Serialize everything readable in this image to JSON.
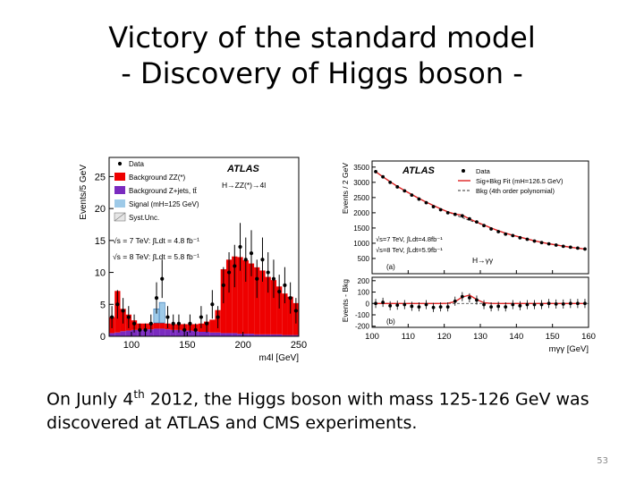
{
  "slide": {
    "title_line1": "Victory of the standard model",
    "title_line2": "- Discovery of Higgs boson -",
    "body_prefix": "On Junly 4",
    "body_sup": "th",
    "body_rest": " 2012, the Higgs boson with mass 125-126 GeV was discovered at ATLAS and CMS experiments.",
    "page_number": "53"
  },
  "colors": {
    "background_zz": "#ee0000",
    "background_zjets": "#7a2bbf",
    "signal": "#9ecae8",
    "data_points": "#000000",
    "fit_line": "#dd2222"
  },
  "chart_data": [
    {
      "type": "bar",
      "experiment": "ATLAS",
      "channel": "H→ZZ(*)→4l",
      "ylabel": "Events/5 GeV",
      "xlabel": "m4l [GeV]",
      "xlim": [
        80,
        250
      ],
      "ylim": [
        0,
        28
      ],
      "yticks": [
        "0",
        "5",
        "10",
        "15",
        "20",
        "25"
      ],
      "xticks": [
        "100",
        "150",
        "200",
        "250"
      ],
      "legend": [
        {
          "label": "Data",
          "style": "marker"
        },
        {
          "label": "Background ZZ(*)",
          "color": "#ee0000"
        },
        {
          "label": "Background Z+jets, tt̄",
          "color": "#7a2bbf"
        },
        {
          "label": "Signal (mH=125 GeV)",
          "color": "#9ecae8"
        },
        {
          "label": "Syst.Unc.",
          "style": "hatched"
        }
      ],
      "annotations": [
        "√s = 7 TeV: ∫Ldt = 4.8 fb⁻¹",
        "√s = 8 TeV: ∫Ldt = 5.8 fb⁻¹"
      ],
      "bin_centers": [
        82.5,
        87.5,
        92.5,
        97.5,
        102.5,
        107.5,
        112.5,
        117.5,
        122.5,
        127.5,
        132.5,
        137.5,
        142.5,
        147.5,
        152.5,
        157.5,
        162.5,
        167.5,
        172.5,
        177.5,
        182.5,
        187.5,
        192.5,
        197.5,
        202.5,
        207.5,
        212.5,
        217.5,
        222.5,
        227.5,
        232.5,
        237.5,
        242.5,
        247.5
      ],
      "series": [
        {
          "name": "Background Z+jets, tt̄",
          "values": [
            0.5,
            0.6,
            0.8,
            0.9,
            1.0,
            1.0,
            1.1,
            1.1,
            1.2,
            1.2,
            1.1,
            1.0,
            1.0,
            0.9,
            0.9,
            0.8,
            0.7,
            0.7,
            0.6,
            0.6,
            0.5,
            0.5,
            0.5,
            0.4,
            0.4,
            0.4,
            0.3,
            0.3,
            0.3,
            0.3,
            0.3,
            0.2,
            0.2,
            0.2
          ]
        },
        {
          "name": "Background ZZ(*)",
          "values": [
            2.5,
            6.5,
            3.5,
            2.5,
            1.5,
            1.0,
            0.9,
            0.9,
            0.9,
            0.9,
            0.9,
            0.9,
            0.9,
            1.0,
            1.0,
            1.1,
            1.3,
            1.6,
            2.0,
            3.5,
            10.0,
            11.5,
            12.0,
            12.0,
            11.5,
            11.0,
            10.5,
            10.0,
            9.0,
            8.5,
            7.5,
            6.5,
            6.0,
            5.0
          ]
        },
        {
          "name": "Signal (mH=125 GeV)",
          "values": [
            0,
            0,
            0,
            0,
            0,
            0,
            0,
            0,
            2.2,
            3.2,
            0,
            0,
            0,
            0,
            0,
            0,
            0,
            0,
            0,
            0,
            0,
            0,
            0,
            0,
            0,
            0,
            0,
            0,
            0,
            0,
            0,
            0,
            0,
            0
          ]
        },
        {
          "name": "Data",
          "values": [
            3,
            5,
            4,
            3,
            2,
            1,
            1,
            2,
            6,
            9,
            3,
            2,
            2,
            1,
            2,
            1,
            3,
            2,
            5,
            3,
            8,
            10,
            11,
            14,
            12,
            13,
            9,
            12,
            10,
            9,
            7,
            8,
            6,
            4
          ]
        }
      ]
    },
    {
      "type": "scatter",
      "experiment": "ATLAS",
      "channel": "H→γγ",
      "ylabel": "Events / 2 GeV",
      "ylabel_residual": "Events - Bkg",
      "xlabel": "mγγ [GeV]",
      "xlim": [
        100,
        160
      ],
      "ylim": [
        0,
        3700
      ],
      "residual_ylim": [
        -210,
        230
      ],
      "yticks": [
        "500",
        "1000",
        "1500",
        "2000",
        "2500",
        "3000",
        "3500"
      ],
      "residual_yticks": [
        "-200",
        "-100",
        "0",
        "100",
        "200"
      ],
      "xticks": [
        "100",
        "110",
        "120",
        "130",
        "140",
        "150",
        "160"
      ],
      "legend": [
        {
          "label": "Data",
          "style": "marker"
        },
        {
          "label": "Sig+Bkg Fit (mH=126.5 GeV)",
          "style": "solid"
        },
        {
          "label": "Bkg (4th order polynomial)",
          "style": "dashed"
        }
      ],
      "annotations": [
        "√s=7 TeV, ∫Ldt=4.8fb⁻¹",
        "√s=8 TeV, ∫Ldt=5.9fb⁻¹"
      ],
      "panel_labels": [
        "(a)",
        "(b)"
      ],
      "x": [
        101,
        103,
        105,
        107,
        109,
        111,
        113,
        115,
        117,
        119,
        121,
        123,
        125,
        127,
        129,
        131,
        133,
        135,
        137,
        139,
        141,
        143,
        145,
        147,
        149,
        151,
        153,
        155,
        157,
        159
      ],
      "series": [
        {
          "name": "Data",
          "values": [
            3350,
            3180,
            3000,
            2850,
            2720,
            2580,
            2450,
            2330,
            2200,
            2100,
            2000,
            1950,
            1900,
            1800,
            1700,
            1580,
            1470,
            1380,
            1300,
            1250,
            1180,
            1130,
            1070,
            1020,
            980,
            940,
            900,
            870,
            840,
            810
          ]
        },
        {
          "name": "Sig+Bkg Fit (mH=126.5 GeV)",
          "values": [
            3350,
            3180,
            3020,
            2870,
            2730,
            2600,
            2470,
            2350,
            2240,
            2130,
            2030,
            1960,
            1920,
            1800,
            1690,
            1600,
            1500,
            1410,
            1330,
            1260,
            1200,
            1140,
            1080,
            1030,
            985,
            945,
            905,
            870,
            840,
            810
          ]
        },
        {
          "name": "Bkg (4th order polynomial)",
          "values": [
            3350,
            3180,
            3020,
            2870,
            2730,
            2600,
            2470,
            2350,
            2240,
            2130,
            2030,
            1930,
            1840,
            1750,
            1670,
            1590,
            1500,
            1410,
            1330,
            1260,
            1200,
            1140,
            1080,
            1030,
            985,
            945,
            905,
            870,
            840,
            810
          ]
        },
        {
          "name": "Events - Bkg",
          "values": [
            0,
            10,
            -20,
            -15,
            -10,
            -25,
            -30,
            -10,
            -35,
            -30,
            -30,
            20,
            60,
            50,
            30,
            -10,
            -30,
            -25,
            -30,
            -10,
            -20,
            -10,
            -10,
            -10,
            0,
            -5,
            -5,
            0,
            0,
            0
          ]
        }
      ]
    }
  ]
}
